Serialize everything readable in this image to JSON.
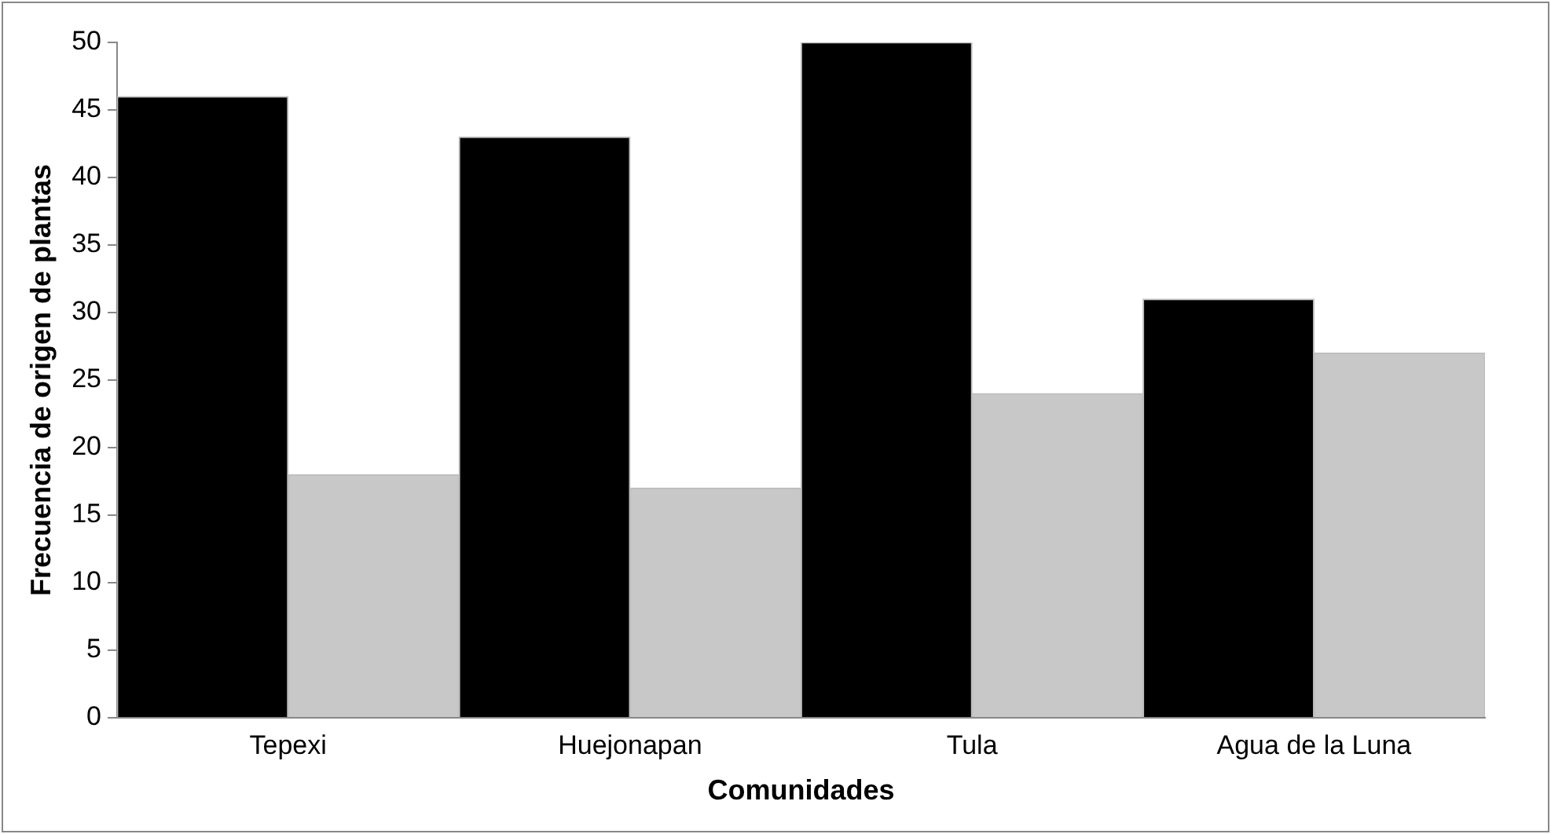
{
  "chart_data": {
    "type": "bar",
    "xlabel": "Comunidades",
    "ylabel": "Frecuencia de origen de plantas",
    "categories": [
      "Tepexi",
      "Huejonapan",
      "Tula",
      "Agua de la Luna"
    ],
    "series": [
      {
        "color": "#000000",
        "values": [
          46,
          43,
          50,
          31
        ]
      },
      {
        "color": "#c8c8c8",
        "values": [
          18,
          17,
          24,
          27
        ]
      }
    ],
    "ylim": [
      0,
      50
    ],
    "yticks": [
      0,
      5,
      10,
      15,
      20,
      25,
      30,
      35,
      40,
      45,
      50
    ]
  }
}
